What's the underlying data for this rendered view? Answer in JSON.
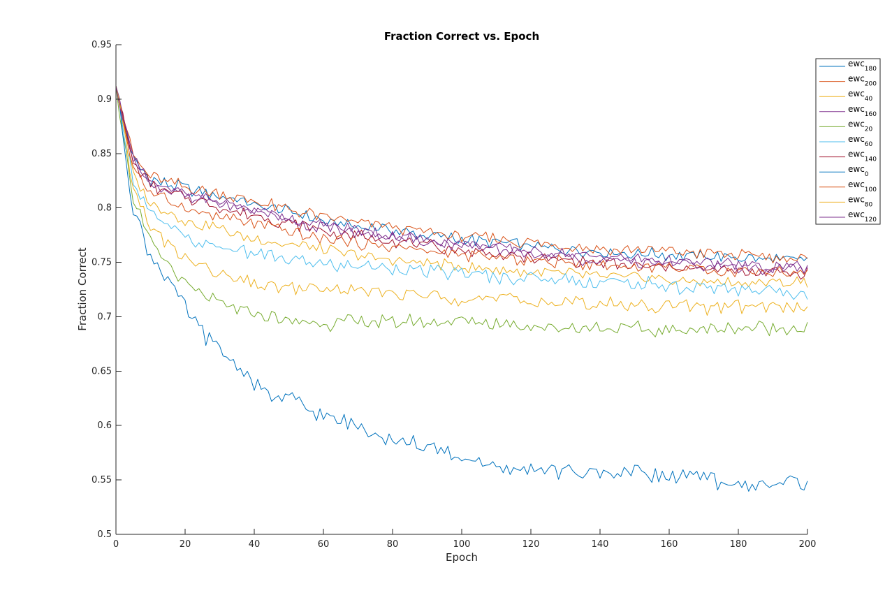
{
  "chart_data": {
    "type": "line",
    "title": "Fraction Correct vs. Epoch",
    "xlabel": "Epoch",
    "ylabel": "Fraction Correct",
    "xlim": [
      0,
      200
    ],
    "ylim": [
      0.5,
      0.95
    ],
    "x_ticks": [
      0,
      20,
      40,
      60,
      80,
      100,
      120,
      140,
      160,
      180,
      200
    ],
    "y_ticks": [
      "0.5",
      "0.55",
      "0.6",
      "0.65",
      "0.7",
      "0.75",
      "0.8",
      "0.85",
      "0.9",
      "0.95"
    ],
    "grid": false,
    "legend_position": "top-right",
    "colors": {
      "blue": "#0072BD",
      "orange": "#D95319",
      "yellow": "#EDB120",
      "purple": "#7E2F8E",
      "green": "#77AC30",
      "cyan": "#4DBEEE",
      "maroon": "#A2142F"
    },
    "series": [
      {
        "name": "ewc",
        "sub": "180",
        "color": "#0072BD",
        "x": [
          0,
          5,
          10,
          20,
          40,
          60,
          80,
          100,
          120,
          140,
          160,
          180,
          200
        ],
        "values": [
          0.912,
          0.845,
          0.826,
          0.818,
          0.803,
          0.788,
          0.779,
          0.771,
          0.765,
          0.76,
          0.757,
          0.754,
          0.752
        ]
      },
      {
        "name": "ewc",
        "sub": "200",
        "color": "#D95319",
        "x": [
          0,
          5,
          10,
          20,
          40,
          60,
          80,
          100,
          120,
          140,
          160,
          180,
          200
        ],
        "values": [
          0.912,
          0.848,
          0.829,
          0.82,
          0.806,
          0.792,
          0.782,
          0.774,
          0.768,
          0.763,
          0.76,
          0.757,
          0.753
        ]
      },
      {
        "name": "ewc",
        "sub": "40",
        "color": "#EDB120",
        "x": [
          0,
          5,
          10,
          20,
          40,
          60,
          80,
          100,
          120,
          140,
          160,
          180,
          200
        ],
        "values": [
          0.912,
          0.831,
          0.805,
          0.789,
          0.772,
          0.761,
          0.752,
          0.746,
          0.741,
          0.737,
          0.734,
          0.732,
          0.731
        ]
      },
      {
        "name": "ewc",
        "sub": "160",
        "color": "#7E2F8E",
        "x": [
          0,
          5,
          10,
          20,
          40,
          60,
          80,
          100,
          120,
          140,
          160,
          180,
          200
        ],
        "values": [
          0.912,
          0.843,
          0.824,
          0.812,
          0.797,
          0.784,
          0.775,
          0.767,
          0.76,
          0.755,
          0.751,
          0.747,
          0.745
        ]
      },
      {
        "name": "ewc",
        "sub": "20",
        "color": "#77AC30",
        "x": [
          0,
          5,
          10,
          15,
          20,
          25,
          30,
          40,
          50,
          60,
          80,
          100,
          120,
          140,
          160,
          180,
          200
        ],
        "values": [
          0.912,
          0.808,
          0.768,
          0.748,
          0.731,
          0.719,
          0.711,
          0.702,
          0.697,
          0.694,
          0.695,
          0.696,
          0.692,
          0.69,
          0.688,
          0.689,
          0.69
        ]
      },
      {
        "name": "ewc",
        "sub": "60",
        "color": "#4DBEEE",
        "x": [
          0,
          5,
          10,
          20,
          30,
          40,
          50,
          60,
          80,
          100,
          120,
          140,
          160,
          180,
          200
        ],
        "values": [
          0.912,
          0.827,
          0.793,
          0.772,
          0.764,
          0.758,
          0.752,
          0.748,
          0.744,
          0.739,
          0.736,
          0.732,
          0.728,
          0.725,
          0.723
        ]
      },
      {
        "name": "ewc",
        "sub": "140",
        "color": "#A2142F",
        "x": [
          0,
          5,
          10,
          20,
          40,
          60,
          80,
          100,
          120,
          140,
          160,
          180,
          200
        ],
        "values": [
          0.912,
          0.842,
          0.821,
          0.809,
          0.793,
          0.779,
          0.77,
          0.761,
          0.754,
          0.749,
          0.745,
          0.742,
          0.74
        ]
      },
      {
        "name": "ewc",
        "sub": "0",
        "color": "#0072BD",
        "x": [
          0,
          5,
          10,
          15,
          20,
          25,
          30,
          35,
          40,
          45,
          50,
          60,
          70,
          80,
          90,
          100,
          105,
          110,
          120,
          130,
          140,
          150,
          160,
          170,
          180,
          190,
          200
        ],
        "values": [
          0.912,
          0.8,
          0.756,
          0.735,
          0.707,
          0.685,
          0.668,
          0.655,
          0.64,
          0.628,
          0.624,
          0.608,
          0.6,
          0.588,
          0.579,
          0.57,
          0.57,
          0.556,
          0.561,
          0.557,
          0.557,
          0.558,
          0.553,
          0.551,
          0.546,
          0.548,
          0.547
        ]
      },
      {
        "name": "ewc",
        "sub": "100",
        "color": "#D95319",
        "x": [
          0,
          5,
          10,
          20,
          40,
          60,
          80,
          100,
          120,
          140,
          160,
          180,
          200
        ],
        "values": [
          0.912,
          0.838,
          0.813,
          0.8,
          0.785,
          0.772,
          0.764,
          0.757,
          0.752,
          0.748,
          0.745,
          0.742,
          0.741
        ]
      },
      {
        "name": "ewc",
        "sub": "80",
        "color": "#EDB120",
        "x": [
          0,
          5,
          10,
          15,
          20,
          25,
          30,
          40,
          50,
          60,
          80,
          100,
          120,
          140,
          160,
          180,
          200
        ],
        "values": [
          0.912,
          0.818,
          0.782,
          0.765,
          0.754,
          0.745,
          0.737,
          0.73,
          0.727,
          0.725,
          0.721,
          0.717,
          0.714,
          0.712,
          0.71,
          0.709,
          0.708
        ]
      },
      {
        "name": "ewc",
        "sub": "120",
        "color": "#7E2F8E",
        "x": [
          0,
          5,
          10,
          20,
          40,
          60,
          80,
          100,
          120,
          140,
          160,
          180,
          200
        ],
        "values": [
          0.912,
          0.842,
          0.822,
          0.812,
          0.796,
          0.782,
          0.773,
          0.765,
          0.758,
          0.752,
          0.748,
          0.745,
          0.744
        ]
      }
    ]
  }
}
